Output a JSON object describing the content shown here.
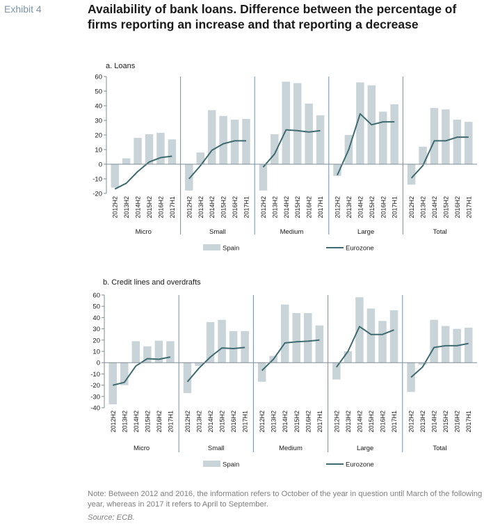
{
  "header": {
    "exhibit": "Exhibit 4",
    "title": "Availability of bank loans. Difference between the percentage of firms reporting an increase and that reporting a decrease"
  },
  "colors": {
    "spain": "#c9d4d9",
    "eurozone": "#3e6b71",
    "axis": "#7f8c94",
    "divider": "#6f8fb0"
  },
  "chart_data": [
    {
      "type": "bar",
      "title": "a. Loans",
      "ylim": [
        -20,
        60
      ],
      "yticks": [
        -20,
        -10,
        0,
        10,
        20,
        30,
        40,
        50,
        60
      ],
      "periods": [
        "2012H2",
        "2013H2",
        "2014H2",
        "2015H2",
        "2016H2",
        "2017H1"
      ],
      "groups": [
        "Micro",
        "Small",
        "Medium",
        "Large",
        "Total"
      ],
      "series": [
        {
          "name": "Spain",
          "type": "bar",
          "values": [
            [
              -16,
              4,
              18,
              20.5,
              21.5,
              17
            ],
            [
              -18,
              8,
              37,
              33,
              30.5,
              31
            ],
            [
              -18,
              20.5,
              56.5,
              55.5,
              41.5,
              33.5
            ],
            [
              -8,
              20,
              56,
              54,
              36,
              41
            ],
            [
              -14,
              12,
              38.5,
              37.5,
              30.5,
              29
            ]
          ]
        },
        {
          "name": "Eurozone",
          "type": "line",
          "values": [
            [
              -17,
              -13,
              -5,
              1.5,
              4.5,
              5.5
            ],
            [
              -10,
              -1,
              9.5,
              14,
              16,
              16
            ],
            [
              -2,
              7,
              23.5,
              23,
              22,
              23
            ],
            [
              -7.5,
              10,
              34.5,
              27,
              29,
              29
            ],
            [
              -9.5,
              -1,
              16,
              16,
              18.5,
              18.5
            ]
          ]
        }
      ],
      "legend": "bottom"
    },
    {
      "type": "bar",
      "title": "b. Credit lines and overdrafts",
      "ylim": [
        -40,
        60
      ],
      "yticks": [
        -40,
        -30,
        -20,
        -10,
        0,
        10,
        20,
        30,
        40,
        50,
        60
      ],
      "periods": [
        "2012H2",
        "2013H2",
        "2014H2",
        "2015H2",
        "2016H2",
        "2017H1"
      ],
      "groups": [
        "Micro",
        "Small",
        "Medium",
        "Large",
        "Total"
      ],
      "series": [
        {
          "name": "Spain",
          "type": "bar",
          "values": [
            [
              -37,
              -20,
              19,
              14.5,
              19.5,
              19
            ],
            [
              -27,
              -3,
              36,
              38,
              28,
              28
            ],
            [
              -17,
              6,
              51.5,
              44,
              44,
              33
            ],
            [
              -15,
              10,
              58,
              48,
              37,
              46.5
            ],
            [
              -26,
              -2,
              38,
              32.5,
              30,
              31
            ]
          ]
        },
        {
          "name": "Eurozone",
          "type": "line",
          "values": [
            [
              -20,
              -17.5,
              -3,
              3.5,
              3,
              5
            ],
            [
              -17,
              -5,
              5,
              13,
              12.5,
              13.5
            ],
            [
              -7,
              3,
              17.5,
              18.5,
              19,
              20
            ],
            [
              -4,
              10,
              32,
              25,
              25,
              29
            ],
            [
              -13,
              -4,
              13.5,
              15,
              15,
              17
            ]
          ]
        }
      ],
      "legend": "bottom"
    }
  ],
  "footer": {
    "note": "Note: Between 2012 and 2016, the information refers to October of the year in question until March of the following year, whereas in 2017 it refers to April to September.",
    "source": "Source: ECB."
  }
}
